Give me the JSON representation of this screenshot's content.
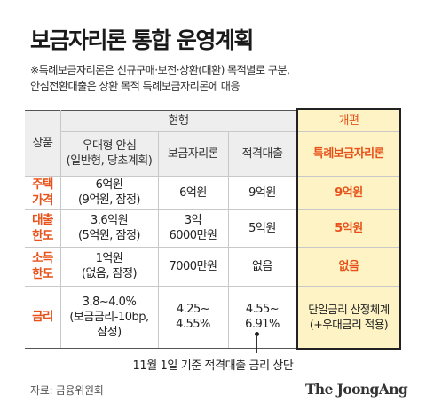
{
  "title": "보금자리론 통합 운영계획",
  "note": {
    "line1": "※특례보금자리론은 신규구매·보전·상환(대환) 목적별로 구분,",
    "line2": "안심전환대출은 상환 목적 특례보금자리론에 대응"
  },
  "table": {
    "header": {
      "category": "상품",
      "current": "현행",
      "reform": "개편",
      "columns": [
        {
          "line1": "우대형 안심",
          "line2": "(일반형, 당초계획)"
        },
        {
          "line1": "보금자리론"
        },
        {
          "line1": "적격대출"
        },
        {
          "line1": "특례보금자리론"
        }
      ]
    },
    "rows": [
      {
        "label1": "주택",
        "label2": "가격",
        "cells": [
          {
            "line1": "6억원",
            "line2": "(9억원, 잠정)"
          },
          {
            "line1": "6억원"
          },
          {
            "line1": "9억원"
          },
          {
            "line1": "9억원"
          }
        ]
      },
      {
        "label1": "대출",
        "label2": "한도",
        "cells": [
          {
            "line1": "3.6억원",
            "line2": "(5억원, 잠정)"
          },
          {
            "line1": "3억",
            "line2": "6000만원"
          },
          {
            "line1": "5억원"
          },
          {
            "line1": "5억원"
          }
        ]
      },
      {
        "label1": "소득",
        "label2": "한도",
        "cells": [
          {
            "line1": "1억원",
            "line2": "(없음, 잠정)"
          },
          {
            "line1": "7000만원"
          },
          {
            "line1": "없음"
          },
          {
            "line1": "없음"
          }
        ]
      },
      {
        "label1": "금리",
        "cells": [
          {
            "line1": "3.8~4.0%",
            "line2": "(보금금리-10bp,",
            "line3": "잠정)"
          },
          {
            "line1": "4.25~",
            "line2": "4.55%"
          },
          {
            "line1": "4.55~",
            "line2": "6.91%"
          },
          {
            "line1": "단일금리 산정체계",
            "line2": "(+우대금리 적용)"
          }
        ]
      }
    ]
  },
  "caption": "11월 1일 기준 적격대출 금리 상단",
  "source": "자료: 금융위원회",
  "logo": "The JoongAng",
  "colors": {
    "accent": "#e8521a",
    "reform_background": "#fdf3c4",
    "header_shade": "#eeeeee"
  }
}
